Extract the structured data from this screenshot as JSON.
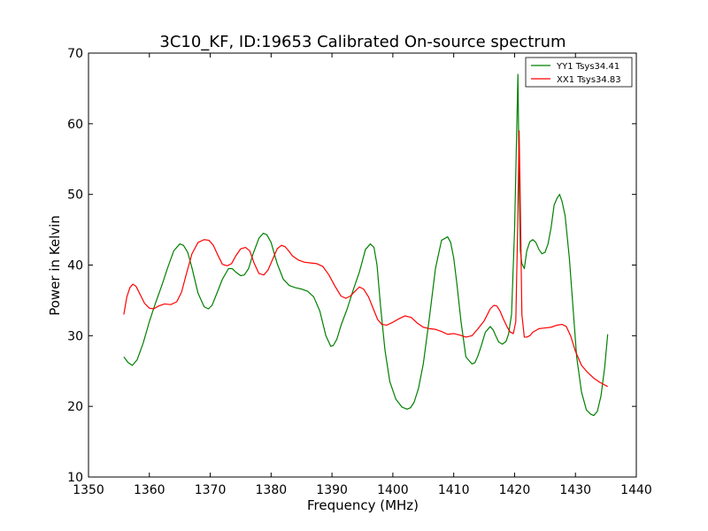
{
  "chart_data": {
    "type": "line",
    "title": "3C10_KF, ID:19653 Calibrated On-source spectrum",
    "xlabel": "Frequency (MHz)",
    "ylabel": "Power in Kelvin",
    "xlim": [
      1350,
      1440
    ],
    "ylim": [
      10,
      70
    ],
    "xticks": [
      "1350",
      "1360",
      "1370",
      "1380",
      "1390",
      "1400",
      "1410",
      "1420",
      "1430",
      "1440"
    ],
    "yticks": [
      "10",
      "20",
      "30",
      "40",
      "50",
      "60",
      "70"
    ],
    "grid": false,
    "legend_position": "top-right",
    "series": [
      {
        "name": "YY1 Tsys34.41",
        "color": "#008000",
        "x": [
          1355.8,
          1356.5,
          1357.2,
          1358.0,
          1359.0,
          1360.0,
          1361.0,
          1362.0,
          1363.0,
          1364.0,
          1365.0,
          1365.6,
          1366.3,
          1367.0,
          1368.0,
          1369.0,
          1369.7,
          1370.3,
          1371.0,
          1372.0,
          1373.0,
          1373.6,
          1374.2,
          1375.0,
          1375.6,
          1376.3,
          1377.0,
          1378.0,
          1378.7,
          1379.3,
          1380.0,
          1381.0,
          1382.0,
          1383.0,
          1384.0,
          1385.0,
          1386.0,
          1387.0,
          1388.0,
          1389.0,
          1389.8,
          1390.2,
          1390.8,
          1391.5,
          1392.5,
          1393.5,
          1394.5,
          1395.5,
          1396.3,
          1396.9,
          1397.4,
          1398.0,
          1398.7,
          1399.5,
          1400.5,
          1401.5,
          1402.3,
          1402.9,
          1403.5,
          1404.2,
          1405.0,
          1406.0,
          1407.0,
          1408.0,
          1409.0,
          1409.5,
          1410.0,
          1410.5,
          1411.2,
          1412.0,
          1413.0,
          1413.5,
          1414.0,
          1414.5,
          1415.2,
          1416.0,
          1416.5,
          1416.9,
          1417.4,
          1418.0,
          1418.6,
          1419.0,
          1419.5,
          1420.0,
          1420.3,
          1420.55,
          1420.75,
          1420.95,
          1421.2,
          1421.6,
          1422.0,
          1422.5,
          1423.0,
          1423.5,
          1424.0,
          1424.5,
          1425.0,
          1425.5,
          1426.0,
          1426.5,
          1427.0,
          1427.4,
          1427.8,
          1428.3,
          1429.0,
          1429.6,
          1430.2,
          1431.0,
          1431.8,
          1432.5,
          1433.0,
          1433.6,
          1434.2,
          1434.8,
          1435.3
        ],
        "y": [
          27,
          26.2,
          25.8,
          26.6,
          29,
          32,
          34.6,
          37,
          39.6,
          42,
          43,
          42.8,
          41.8,
          39.6,
          36,
          34.1,
          33.8,
          34.3,
          35.8,
          38,
          39.5,
          39.5,
          39,
          38.5,
          38.6,
          39.5,
          41.5,
          43.8,
          44.5,
          44.3,
          43.2,
          40.2,
          38,
          37.1,
          36.8,
          36.6,
          36.3,
          35.5,
          33.5,
          30,
          28.5,
          28.6,
          29.5,
          31.5,
          33.8,
          36.5,
          39,
          42.2,
          43,
          42.5,
          40,
          34,
          28,
          23.5,
          21,
          19.9,
          19.6,
          19.8,
          20.6,
          22.5,
          26,
          32.5,
          39.5,
          43.5,
          44,
          43.2,
          41,
          37.5,
          32,
          27,
          26,
          26.2,
          27.2,
          28.5,
          30.5,
          31.3,
          30.8,
          30,
          29.1,
          28.8,
          29.2,
          30.2,
          33,
          45,
          57,
          67,
          52,
          42,
          40.2,
          39.5,
          42,
          43.3,
          43.6,
          43.2,
          42.2,
          41.6,
          41.8,
          43,
          45.3,
          48.5,
          49.5,
          50,
          49,
          47,
          41,
          34,
          27,
          22,
          19.5,
          18.9,
          18.7,
          19.3,
          21.5,
          25.5,
          30.2
        ]
      },
      {
        "name": "XX1 Tsys34.83",
        "color": "#ff0000",
        "x": [
          1355.8,
          1356.3,
          1356.8,
          1357.3,
          1357.8,
          1358.5,
          1359.2,
          1360.0,
          1360.7,
          1361.5,
          1362.5,
          1363.5,
          1364.5,
          1365.3,
          1366.0,
          1367.0,
          1368.0,
          1369.0,
          1369.8,
          1370.5,
          1371.2,
          1372.0,
          1372.8,
          1373.5,
          1374.2,
          1375.0,
          1375.8,
          1376.5,
          1377.2,
          1378.0,
          1378.8,
          1379.5,
          1380.2,
          1381.0,
          1381.7,
          1382.3,
          1382.9,
          1383.5,
          1384.5,
          1385.5,
          1386.5,
          1387.5,
          1388.5,
          1389.5,
          1390.5,
          1391.5,
          1392.3,
          1393.0,
          1393.8,
          1394.5,
          1395.2,
          1396.0,
          1396.8,
          1397.5,
          1398.2,
          1399.0,
          1400.0,
          1401.0,
          1402.0,
          1403.0,
          1404.0,
          1405.0,
          1406.0,
          1407.0,
          1408.0,
          1409.0,
          1410.0,
          1411.0,
          1412.0,
          1413.0,
          1414.0,
          1415.0,
          1416.0,
          1416.6,
          1417.1,
          1417.6,
          1418.2,
          1418.8,
          1419.3,
          1419.8,
          1420.2,
          1420.5,
          1420.75,
          1420.95,
          1421.2,
          1421.6,
          1422.0,
          1422.5,
          1423.0,
          1424.0,
          1425.0,
          1426.0,
          1427.0,
          1427.8,
          1428.5,
          1429.2,
          1430.0,
          1431.0,
          1432.0,
          1433.0,
          1434.0,
          1435.3
        ],
        "y": [
          33,
          35.5,
          36.8,
          37.3,
          37,
          35.8,
          34.6,
          33.9,
          33.8,
          34.2,
          34.5,
          34.4,
          34.8,
          36.2,
          38.5,
          41.6,
          43.2,
          43.6,
          43.5,
          42.8,
          41.5,
          40.1,
          39.9,
          40.2,
          41.3,
          42.3,
          42.5,
          42,
          40.3,
          38.8,
          38.6,
          39.3,
          40.7,
          42.3,
          42.8,
          42.6,
          42,
          41.3,
          40.7,
          40.4,
          40.3,
          40.2,
          39.8,
          38.6,
          37,
          35.6,
          35.3,
          35.6,
          36.3,
          36.9,
          36.6,
          35.5,
          33.8,
          32.3,
          31.6,
          31.5,
          31.9,
          32.4,
          32.8,
          32.6,
          31.8,
          31.2,
          31,
          30.9,
          30.6,
          30.2,
          30.3,
          30.1,
          29.8,
          30,
          31,
          32.1,
          33.8,
          34.3,
          34.2,
          33.5,
          32.3,
          31.2,
          30.5,
          30.3,
          32,
          45,
          59,
          48,
          33,
          29.8,
          29.8,
          30,
          30.5,
          31,
          31.1,
          31.2,
          31.5,
          31.6,
          31.3,
          30,
          27.8,
          25.8,
          24.8,
          24,
          23.4,
          22.8
        ]
      }
    ]
  }
}
